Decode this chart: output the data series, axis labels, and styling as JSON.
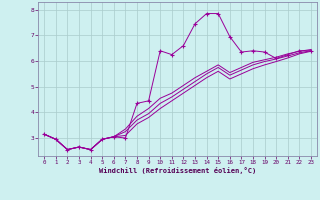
{
  "xlabel": "Windchill (Refroidissement éolien,°C)",
  "background_color": "#cef0f0",
  "line_color": "#990099",
  "grid_color": "#aacccc",
  "xlim": [
    -0.5,
    23.5
  ],
  "ylim": [
    2.3,
    8.3
  ],
  "yticks": [
    3,
    4,
    5,
    6,
    7,
    8
  ],
  "xticks": [
    0,
    1,
    2,
    3,
    4,
    5,
    6,
    7,
    8,
    9,
    10,
    11,
    12,
    13,
    14,
    15,
    16,
    17,
    18,
    19,
    20,
    21,
    22,
    23
  ],
  "line1_x": [
    0,
    1,
    2,
    3,
    4,
    5,
    6,
    7,
    8,
    9,
    10,
    11,
    12,
    13,
    14,
    15,
    16,
    17,
    18,
    19,
    20,
    21,
    22,
    23
  ],
  "line1_y": [
    3.15,
    2.95,
    2.55,
    2.65,
    2.55,
    2.95,
    3.05,
    3.0,
    4.35,
    4.45,
    6.4,
    6.25,
    6.6,
    7.45,
    7.85,
    7.85,
    6.95,
    6.35,
    6.4,
    6.35,
    6.1,
    6.25,
    6.4,
    6.4
  ],
  "line2_x": [
    0,
    1,
    2,
    3,
    4,
    5,
    6,
    7,
    8,
    9,
    10,
    11,
    12,
    13,
    14,
    15,
    16,
    17,
    18,
    19,
    20,
    21,
    22,
    23
  ],
  "line2_y": [
    3.15,
    2.95,
    2.55,
    2.65,
    2.55,
    2.95,
    3.05,
    3.25,
    3.7,
    3.95,
    4.35,
    4.6,
    4.9,
    5.2,
    5.5,
    5.75,
    5.45,
    5.65,
    5.85,
    5.98,
    6.08,
    6.2,
    6.32,
    6.4
  ],
  "line3_x": [
    0,
    1,
    2,
    3,
    4,
    5,
    6,
    7,
    8,
    9,
    10,
    11,
    12,
    13,
    14,
    15,
    16,
    17,
    18,
    19,
    20,
    21,
    22,
    23
  ],
  "line3_y": [
    3.15,
    2.95,
    2.55,
    2.65,
    2.55,
    2.95,
    3.05,
    3.35,
    3.85,
    4.15,
    4.55,
    4.75,
    5.05,
    5.35,
    5.6,
    5.85,
    5.55,
    5.75,
    5.95,
    6.05,
    6.15,
    6.28,
    6.38,
    6.45
  ],
  "line4_x": [
    0,
    1,
    2,
    3,
    4,
    5,
    6,
    7,
    8,
    9,
    10,
    11,
    12,
    13,
    14,
    15,
    16,
    17,
    18,
    19,
    20,
    21,
    22,
    23
  ],
  "line4_y": [
    3.15,
    2.95,
    2.55,
    2.65,
    2.55,
    2.95,
    3.05,
    3.1,
    3.55,
    3.8,
    4.15,
    4.45,
    4.75,
    5.05,
    5.35,
    5.6,
    5.3,
    5.5,
    5.7,
    5.85,
    5.98,
    6.12,
    6.28,
    6.38
  ]
}
